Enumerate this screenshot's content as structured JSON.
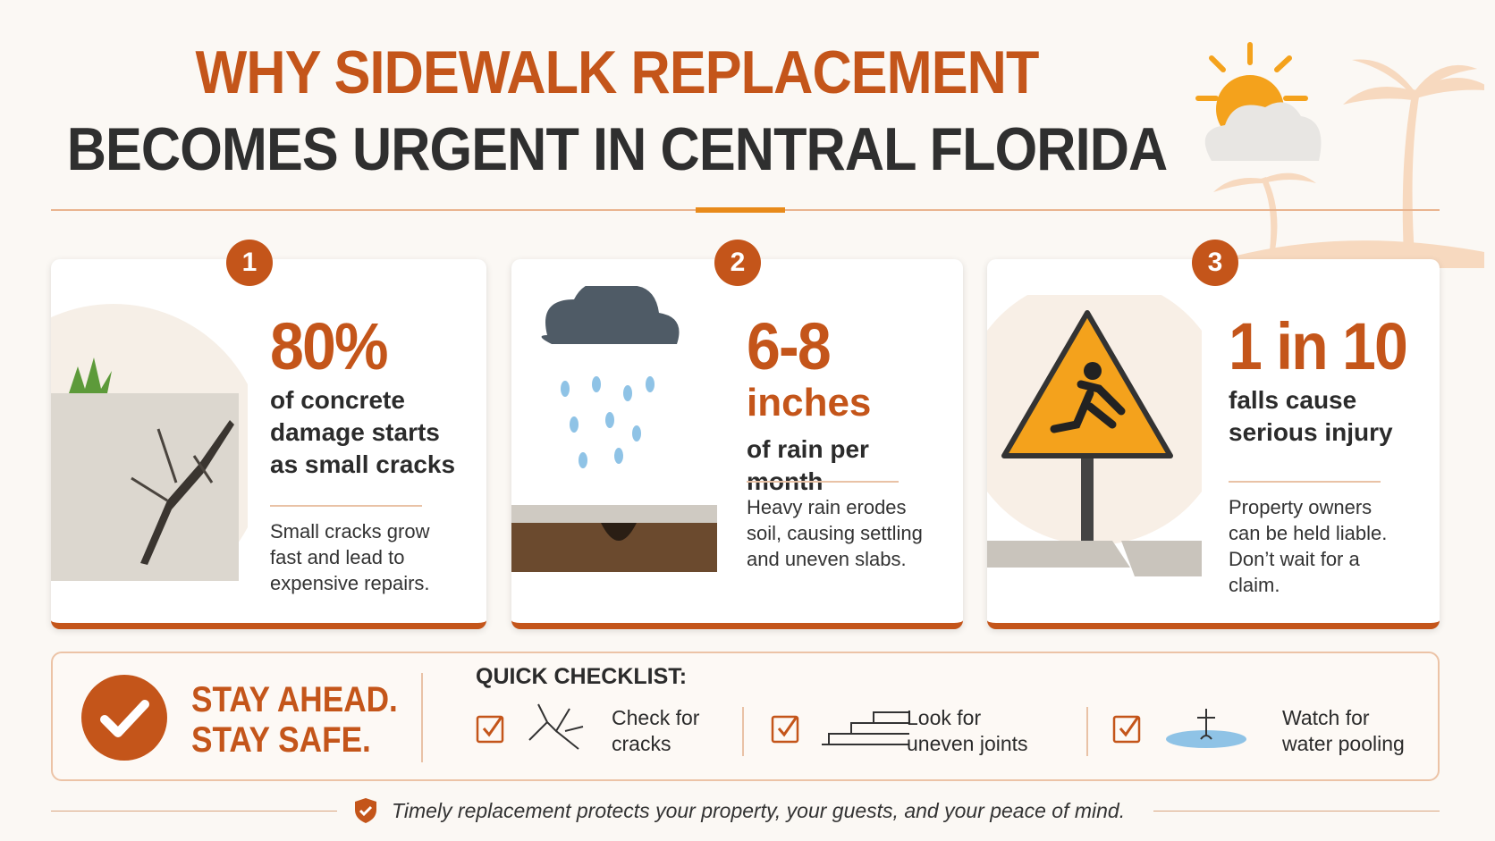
{
  "header": {
    "title_line1": "WHY SIDEWALK REPLACEMENT",
    "title_line2": "BECOMES URGENT IN CENTRAL FLORIDA"
  },
  "cards": [
    {
      "number": "1",
      "stat": "80%",
      "desc": "of concrete damage starts as small cracks",
      "body": "Small cracks grow fast and lead to expensive repairs."
    },
    {
      "number": "2",
      "stat": "6-8",
      "stat_unit": "inches",
      "desc": "of rain per month",
      "body": "Heavy rain erodes soil, causing settling and uneven slabs."
    },
    {
      "number": "3",
      "stat": "1 in 10",
      "desc": "falls cause serious injury",
      "body": "Property owners can be held liable. Don’t wait for a claim."
    }
  ],
  "checklist": {
    "slogan_line1": "STAY AHEAD.",
    "slogan_line2": "STAY SAFE.",
    "heading": "QUICK CHECKLIST:",
    "items": [
      "Check for cracks",
      "Look for uneven joints",
      "Watch for water pooling"
    ]
  },
  "footer": "Timely replacement protects your property, your guests, and your peace of mind."
}
